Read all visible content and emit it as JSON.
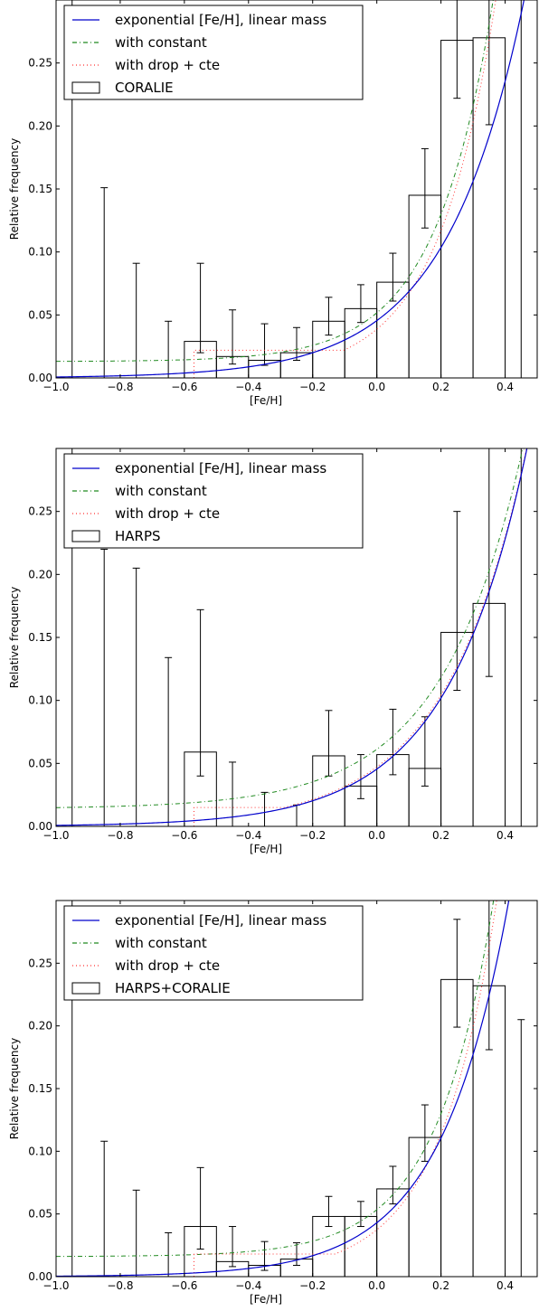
{
  "chart_data": [
    {
      "type": "bar",
      "xlabel": "[Fe/H]",
      "ylabel": "Relative frequency",
      "xlim": [
        -1.0,
        0.5
      ],
      "ylim": [
        0.0,
        0.3
      ],
      "xticks": [
        -1.0,
        -0.8,
        -0.6,
        -0.4,
        -0.2,
        0.0,
        0.2,
        0.4
      ],
      "xtick_labels": [
        "−1.0",
        "−0.8",
        "−0.6",
        "−0.4",
        "−0.2",
        "0.0",
        "0.2",
        "0.4"
      ],
      "yticks": [
        0.0,
        0.05,
        0.1,
        0.15,
        0.2,
        0.25
      ],
      "ytick_labels": [
        "0.00",
        "0.05",
        "0.10",
        "0.15",
        "0.20",
        "0.25"
      ],
      "legend_position": "top-left",
      "legend": [
        "exponential [Fe/H], linear mass",
        "with constant",
        "with drop + cte",
        "CORALIE"
      ],
      "bins": {
        "left_edges": [
          -0.6,
          -0.5,
          -0.4,
          -0.3,
          -0.2,
          -0.1,
          0.0,
          0.1,
          0.2,
          0.3
        ],
        "values": [
          0.029,
          0.017,
          0.014,
          0.02,
          0.045,
          0.055,
          0.076,
          0.145,
          0.268,
          0.27
        ]
      },
      "error_bars": [
        {
          "x": -0.95,
          "low": 0.0,
          "high": 0.3
        },
        {
          "x": -0.85,
          "low": 0.0,
          "high": 0.151
        },
        {
          "x": -0.75,
          "low": 0.0,
          "high": 0.091
        },
        {
          "x": -0.65,
          "low": 0.0,
          "high": 0.045
        },
        {
          "x": -0.55,
          "low": 0.02,
          "high": 0.091
        },
        {
          "x": -0.45,
          "low": 0.011,
          "high": 0.054
        },
        {
          "x": -0.35,
          "low": 0.01,
          "high": 0.043
        },
        {
          "x": -0.25,
          "low": 0.014,
          "high": 0.04
        },
        {
          "x": -0.15,
          "low": 0.034,
          "high": 0.064
        },
        {
          "x": -0.05,
          "low": 0.044,
          "high": 0.074
        },
        {
          "x": 0.05,
          "low": 0.061,
          "high": 0.099
        },
        {
          "x": 0.15,
          "low": 0.119,
          "high": 0.182
        },
        {
          "x": 0.25,
          "low": 0.222,
          "high": 0.3
        },
        {
          "x": 0.35,
          "low": 0.201,
          "high": 0.3
        },
        {
          "x": 0.45,
          "low": 0.0,
          "high": 0.3
        }
      ],
      "models": {
        "exponential_A": 0.0455,
        "exponential_B": 1.785,
        "constant_A": 0.0387,
        "constant_B": 2.4,
        "constant_floor": 0.013,
        "drop_cte_value": 0.022,
        "drop_cte_cut": -0.57
      }
    },
    {
      "type": "bar",
      "xlabel": "[Fe/H]",
      "ylabel": "Relative frequency",
      "xlim": [
        -1.0,
        0.5
      ],
      "ylim": [
        0.0,
        0.3
      ],
      "xticks": [
        -1.0,
        -0.8,
        -0.6,
        -0.4,
        -0.2,
        0.0,
        0.2,
        0.4
      ],
      "xtick_labels": [
        "−1.0",
        "−0.8",
        "−0.6",
        "−0.4",
        "−0.2",
        "0.0",
        "0.2",
        "0.4"
      ],
      "yticks": [
        0.0,
        0.05,
        0.1,
        0.15,
        0.2,
        0.25
      ],
      "ytick_labels": [
        "0.00",
        "0.05",
        "0.10",
        "0.15",
        "0.20",
        "0.25"
      ],
      "legend_position": "top-left",
      "legend": [
        "exponential [Fe/H], linear mass",
        "with constant",
        "with drop + cte",
        "HARPS"
      ],
      "bins": {
        "left_edges": [
          -0.6,
          -0.2,
          -0.1,
          0.0,
          0.1,
          0.2,
          0.3
        ],
        "values": [
          0.059,
          0.056,
          0.032,
          0.057,
          0.046,
          0.154,
          0.177
        ]
      },
      "error_bars": [
        {
          "x": -0.95,
          "low": 0.0,
          "high": 0.3
        },
        {
          "x": -0.85,
          "low": 0.0,
          "high": 0.22
        },
        {
          "x": -0.75,
          "low": 0.0,
          "high": 0.205
        },
        {
          "x": -0.65,
          "low": 0.0,
          "high": 0.134
        },
        {
          "x": -0.55,
          "low": 0.04,
          "high": 0.172
        },
        {
          "x": -0.45,
          "low": 0.0,
          "high": 0.051
        },
        {
          "x": -0.35,
          "low": 0.0,
          "high": 0.027
        },
        {
          "x": -0.25,
          "low": 0.0,
          "high": 0.017
        },
        {
          "x": -0.15,
          "low": 0.04,
          "high": 0.092
        },
        {
          "x": -0.05,
          "low": 0.022,
          "high": 0.057
        },
        {
          "x": 0.05,
          "low": 0.041,
          "high": 0.093
        },
        {
          "x": 0.15,
          "low": 0.032,
          "high": 0.087
        },
        {
          "x": 0.25,
          "low": 0.108,
          "high": 0.25
        },
        {
          "x": 0.35,
          "low": 0.119,
          "high": 0.3
        },
        {
          "x": 0.45,
          "low": 0.0,
          "high": 0.3
        }
      ],
      "models": {
        "exponential_A": 0.0455,
        "exponential_B": 1.75,
        "constant_A": 0.0472,
        "constant_B": 1.72,
        "constant_floor": 0.014,
        "drop_cte_value": 0.015,
        "drop_cte_cut": -0.57
      }
    },
    {
      "type": "bar",
      "xlabel": "[Fe/H]",
      "ylabel": "Relative frequency",
      "xlim": [
        -1.0,
        0.5
      ],
      "ylim": [
        0.0,
        0.3
      ],
      "xticks": [
        -1.0,
        -0.8,
        -0.6,
        -0.4,
        -0.2,
        0.0,
        0.2,
        0.4
      ],
      "xtick_labels": [
        "−1.0",
        "−0.8",
        "−0.6",
        "−0.4",
        "−0.2",
        "0.0",
        "0.2",
        "0.4"
      ],
      "yticks": [
        0.0,
        0.05,
        0.1,
        0.15,
        0.2,
        0.25
      ],
      "ytick_labels": [
        "0.00",
        "0.05",
        "0.10",
        "0.15",
        "0.20",
        "0.25"
      ],
      "legend_position": "top-left",
      "legend": [
        "exponential [Fe/H], linear mass",
        "with constant",
        "with drop + cte",
        "HARPS+CORALIE"
      ],
      "bins": {
        "left_edges": [
          -0.6,
          -0.5,
          -0.4,
          -0.3,
          -0.2,
          -0.1,
          0.0,
          0.1,
          0.2,
          0.3
        ],
        "values": [
          0.04,
          0.012,
          0.009,
          0.014,
          0.048,
          0.048,
          0.07,
          0.111,
          0.237,
          0.232
        ]
      },
      "error_bars": [
        {
          "x": -0.95,
          "low": 0.0,
          "high": 0.3
        },
        {
          "x": -0.85,
          "low": 0.0,
          "high": 0.108
        },
        {
          "x": -0.75,
          "low": 0.0,
          "high": 0.069
        },
        {
          "x": -0.65,
          "low": 0.0,
          "high": 0.035
        },
        {
          "x": -0.55,
          "low": 0.022,
          "high": 0.087
        },
        {
          "x": -0.45,
          "low": 0.008,
          "high": 0.04
        },
        {
          "x": -0.35,
          "low": 0.005,
          "high": 0.028
        },
        {
          "x": -0.25,
          "low": 0.009,
          "high": 0.027
        },
        {
          "x": -0.15,
          "low": 0.04,
          "high": 0.064
        },
        {
          "x": -0.05,
          "low": 0.04,
          "high": 0.06
        },
        {
          "x": 0.05,
          "low": 0.058,
          "high": 0.088
        },
        {
          "x": 0.15,
          "low": 0.092,
          "high": 0.137
        },
        {
          "x": 0.25,
          "low": 0.199,
          "high": 0.285
        },
        {
          "x": 0.35,
          "low": 0.181,
          "high": 0.3
        },
        {
          "x": 0.45,
          "low": 0.0,
          "high": 0.205
        }
      ],
      "models": {
        "exponential_A": 0.043,
        "exponential_B": 2.05,
        "constant_A": 0.0374,
        "constant_B": 2.42,
        "constant_floor": 0.016,
        "drop_cte_value": 0.018,
        "drop_cte_cut": -0.57
      }
    }
  ],
  "colors": {
    "exponential": "#0000cc",
    "constant": "#228b22",
    "drop": "#ff3333",
    "bars": "#000000"
  }
}
